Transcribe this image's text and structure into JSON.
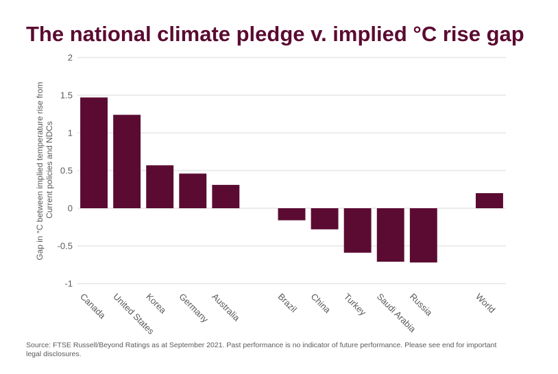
{
  "title": "The national climate pledge v. implied °C rise gap",
  "source": "Source: FTSE Russell/Beyond Ratings as at September 2021. Past performance is no indicator of future performance. Please see end for important legal disclosures.",
  "chart_data": {
    "type": "bar",
    "categories": [
      "Canada",
      "United States",
      "Korea",
      "Germany",
      "Australia",
      "",
      "Brazil",
      "China",
      "Turkey",
      "Saudi Arabia",
      "Russia",
      "",
      "World"
    ],
    "values": [
      1.47,
      1.24,
      0.57,
      0.46,
      0.31,
      null,
      -0.16,
      -0.28,
      -0.59,
      -0.71,
      -0.72,
      null,
      0.2
    ],
    "ylabel_lines": [
      "Gap in °C between implied temperature rise from",
      "Current policies and NDCs"
    ],
    "ylim": [
      -1,
      2
    ],
    "yticks": [
      -1,
      -0.5,
      0,
      0.5,
      1,
      1.5,
      2
    ],
    "ytick_labels": [
      "-1",
      "-0.5",
      "0",
      "0.5",
      "1",
      "1.5",
      "2"
    ],
    "grid": true,
    "legend": "none",
    "bar_color": "#5b0b31",
    "grid_color": "#d9d9d9"
  }
}
